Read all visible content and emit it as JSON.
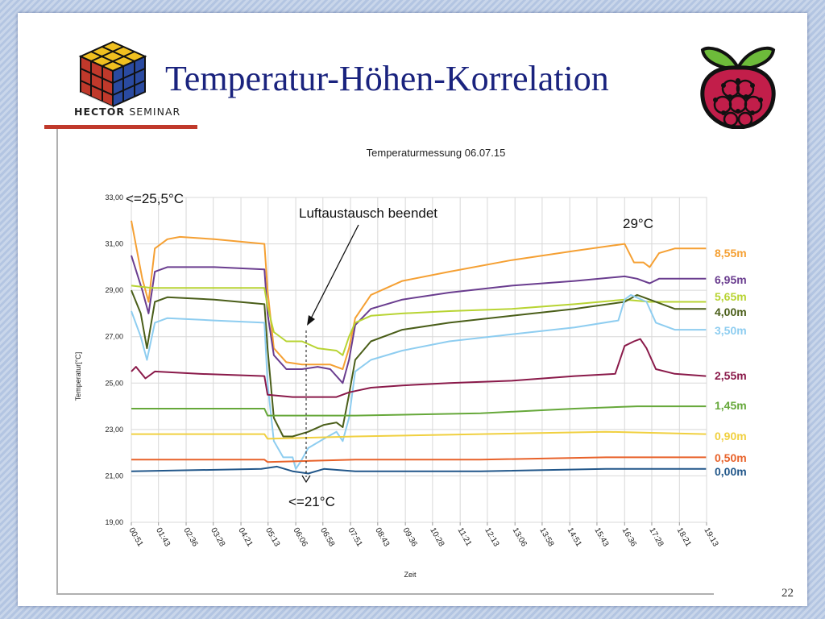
{
  "slide": {
    "title": "Temperatur-Höhen-Korrelation",
    "logo_text_bold": "HECTOR",
    "logo_text_regular": "SEMINAR",
    "page_number": "22"
  },
  "chart_data": {
    "type": "line",
    "title": "Temperaturmessung 06.07.15",
    "xlabel": "Zeit",
    "ylabel": "Temperatur[°C]",
    "ylim": [
      19,
      33
    ],
    "y_ticks": [
      "19,00",
      "21,00",
      "23,00",
      "25,00",
      "27,00",
      "29,00",
      "31,00",
      "33,00"
    ],
    "x_ticks": [
      "00:51",
      "01:43",
      "02:36",
      "03:28",
      "04:21",
      "05:13",
      "06:06",
      "06:58",
      "07:51",
      "08:43",
      "09:36",
      "10:28",
      "11:21",
      "12:13",
      "13:06",
      "13:58",
      "14:51",
      "15:43",
      "16:36",
      "17:28",
      "18:21",
      "19:13"
    ],
    "x_hours": [
      0.85,
      1.717,
      2.6,
      3.467,
      4.35,
      5.217,
      6.1,
      6.967,
      7.85,
      8.717,
      9.6,
      10.467,
      11.35,
      12.217,
      13.1,
      13.967,
      14.85,
      15.717,
      16.6,
      17.467,
      18.35,
      19.217
    ],
    "grid": true,
    "legend_placement": "right",
    "annotations": [
      {
        "text": "<=25,5°C"
      },
      {
        "text": "Luftaustausch beendet"
      },
      {
        "text": "29°C"
      },
      {
        "text": "<=21°C"
      }
    ],
    "series": [
      {
        "name": "8,55m",
        "color": "#f5a033",
        "x": [
          0.85,
          1.2,
          1.4,
          1.6,
          2.0,
          2.4,
          3.5,
          5.1,
          5.2,
          5.4,
          5.8,
          6.3,
          6.8,
          7.2,
          7.6,
          7.8,
          8.0,
          8.5,
          9.5,
          11,
          13,
          15,
          16.6,
          16.9,
          17.2,
          17.4,
          17.7,
          18.2,
          19.2
        ],
        "y": [
          32.0,
          29.5,
          28.5,
          30.8,
          31.2,
          31.3,
          31.2,
          31.0,
          29.0,
          26.5,
          25.9,
          25.8,
          25.8,
          25.8,
          25.6,
          26.5,
          27.8,
          28.8,
          29.4,
          29.8,
          30.3,
          30.7,
          31.0,
          30.2,
          30.2,
          30.0,
          30.6,
          30.8,
          30.8
        ]
      },
      {
        "name": "6,95m",
        "color": "#6a3d8f",
        "x": [
          0.85,
          1.2,
          1.4,
          1.6,
          2.0,
          3.5,
          5.1,
          5.2,
          5.4,
          5.8,
          6.3,
          6.8,
          7.2,
          7.6,
          7.8,
          8.0,
          8.5,
          9.5,
          11,
          13,
          15,
          16.6,
          17.0,
          17.4,
          17.7,
          18.2,
          19.2
        ],
        "y": [
          30.5,
          29.0,
          28.0,
          29.8,
          30.0,
          30.0,
          29.9,
          28.0,
          26.2,
          25.6,
          25.6,
          25.7,
          25.6,
          25.0,
          26.0,
          27.5,
          28.2,
          28.6,
          28.9,
          29.2,
          29.4,
          29.6,
          29.5,
          29.3,
          29.5,
          29.5,
          29.5
        ]
      },
      {
        "name": "5,65m",
        "color": "#b8d433",
        "x": [
          0.85,
          1.5,
          3.0,
          5.1,
          5.2,
          5.4,
          5.8,
          6.3,
          6.8,
          7.4,
          7.6,
          7.8,
          8.0,
          8.5,
          9.5,
          11,
          13,
          15,
          16.6,
          17.4,
          18.2,
          19.2
        ],
        "y": [
          29.2,
          29.1,
          29.1,
          29.1,
          28.3,
          27.2,
          26.8,
          26.8,
          26.5,
          26.4,
          26.2,
          27.0,
          27.6,
          27.9,
          28.0,
          28.1,
          28.2,
          28.4,
          28.6,
          28.5,
          28.5,
          28.5
        ]
      },
      {
        "name": "4,00m",
        "color": "#4a5e19",
        "x": [
          0.85,
          1.15,
          1.35,
          1.6,
          2.0,
          3.5,
          5.1,
          5.2,
          5.4,
          5.7,
          6.0,
          6.5,
          7.0,
          7.4,
          7.6,
          7.8,
          8.0,
          8.5,
          9.5,
          11,
          13,
          15,
          16.6,
          17.0,
          17.4,
          17.8,
          18.2,
          19.2
        ],
        "y": [
          29.0,
          28.0,
          26.5,
          28.5,
          28.7,
          28.6,
          28.4,
          26.5,
          23.5,
          22.7,
          22.7,
          22.9,
          23.2,
          23.3,
          23.1,
          24.5,
          26.0,
          26.8,
          27.3,
          27.6,
          27.9,
          28.2,
          28.5,
          28.8,
          28.6,
          28.4,
          28.2,
          28.2
        ]
      },
      {
        "name": "3,50m",
        "color": "#8ecdf0",
        "x": [
          0.85,
          1.15,
          1.35,
          1.6,
          2.0,
          3.5,
          5.1,
          5.2,
          5.4,
          5.7,
          6.0,
          6.1,
          6.25,
          6.5,
          7.0,
          7.4,
          7.6,
          7.8,
          8.0,
          8.5,
          9.5,
          11,
          13,
          15,
          16.4,
          16.6,
          16.8,
          17.3,
          17.6,
          18.2,
          19.2
        ],
        "y": [
          28.1,
          27.0,
          26.0,
          27.6,
          27.8,
          27.7,
          27.6,
          25.0,
          22.5,
          21.8,
          21.8,
          21.3,
          21.6,
          22.2,
          22.6,
          22.9,
          22.5,
          23.5,
          25.5,
          26.0,
          26.4,
          26.8,
          27.1,
          27.4,
          27.7,
          28.6,
          28.8,
          28.5,
          27.6,
          27.3,
          27.3
        ]
      },
      {
        "name": "2,55m",
        "color": "#8a1a4a",
        "x": [
          0.85,
          1.0,
          1.3,
          1.6,
          3.0,
          5.1,
          5.2,
          6.0,
          7.4,
          7.8,
          8.5,
          9.5,
          11,
          13,
          15,
          16.3,
          16.6,
          16.9,
          17.1,
          17.3,
          17.6,
          18.2,
          19.2
        ],
        "y": [
          25.5,
          25.7,
          25.2,
          25.5,
          25.4,
          25.3,
          24.5,
          24.4,
          24.4,
          24.6,
          24.8,
          24.9,
          25.0,
          25.1,
          25.3,
          25.4,
          26.6,
          26.8,
          26.9,
          26.5,
          25.6,
          25.4,
          25.3
        ]
      },
      {
        "name": "1,45m",
        "color": "#66a83a",
        "x": [
          0.85,
          5.1,
          5.2,
          8.0,
          12.0,
          15.0,
          17.0,
          19.2
        ],
        "y": [
          23.9,
          23.9,
          23.6,
          23.6,
          23.7,
          23.9,
          24.0,
          24.0
        ]
      },
      {
        "name": "0,90m",
        "color": "#f0d040",
        "x": [
          0.85,
          5.1,
          5.2,
          8.0,
          12.0,
          16.0,
          19.2
        ],
        "y": [
          22.8,
          22.8,
          22.6,
          22.7,
          22.8,
          22.9,
          22.8
        ]
      },
      {
        "name": "0,50m",
        "color": "#e8622a",
        "x": [
          0.85,
          5.1,
          5.2,
          8.0,
          12.0,
          16.0,
          19.2
        ],
        "y": [
          21.7,
          21.7,
          21.6,
          21.7,
          21.7,
          21.8,
          21.8
        ]
      },
      {
        "name": "0,00m",
        "color": "#22578a",
        "x": [
          0.85,
          5.0,
          5.5,
          6.0,
          6.5,
          7.0,
          8.0,
          12.0,
          16.0,
          19.2
        ],
        "y": [
          21.2,
          21.3,
          21.4,
          21.2,
          21.1,
          21.3,
          21.2,
          21.2,
          21.3,
          21.3
        ]
      }
    ]
  }
}
